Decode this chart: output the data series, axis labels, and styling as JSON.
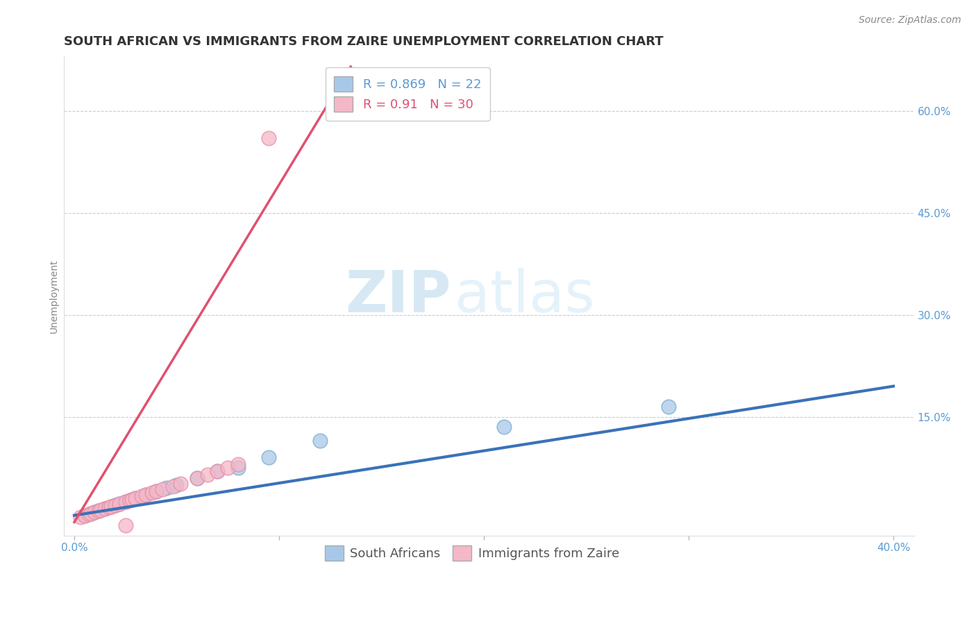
{
  "title": "SOUTH AFRICAN VS IMMIGRANTS FROM ZAIRE UNEMPLOYMENT CORRELATION CHART",
  "source_text": "Source: ZipAtlas.com",
  "ylabel": "Unemployment",
  "xlim": [
    -0.005,
    0.41
  ],
  "ylim": [
    -0.025,
    0.68
  ],
  "xtick_labels": [
    "0.0%",
    "",
    "",
    "",
    "40.0%"
  ],
  "xtick_values": [
    0.0,
    0.1,
    0.2,
    0.3,
    0.4
  ],
  "ytick_labels": [
    "15.0%",
    "30.0%",
    "45.0%",
    "60.0%"
  ],
  "ytick_values": [
    0.15,
    0.3,
    0.45,
    0.6
  ],
  "blue_color": "#a8c8e8",
  "pink_color": "#f4b8c8",
  "blue_edge_color": "#7aafd0",
  "pink_edge_color": "#e890a8",
  "blue_line_color": "#3a72b8",
  "pink_line_color": "#e05070",
  "R_blue": 0.869,
  "N_blue": 22,
  "R_pink": 0.91,
  "N_pink": 30,
  "legend_label_blue": "South Africans",
  "legend_label_pink": "Immigrants from Zaire",
  "watermark_zip": "ZIP",
  "watermark_atlas": "atlas",
  "blue_scatter_x": [
    0.005,
    0.008,
    0.01,
    0.012,
    0.015,
    0.018,
    0.02,
    0.022,
    0.025,
    0.028,
    0.03,
    0.035,
    0.04,
    0.045,
    0.05,
    0.06,
    0.07,
    0.08,
    0.095,
    0.12,
    0.21,
    0.29
  ],
  "blue_scatter_y": [
    0.005,
    0.008,
    0.01,
    0.012,
    0.015,
    0.018,
    0.02,
    0.022,
    0.025,
    0.028,
    0.03,
    0.035,
    0.04,
    0.045,
    0.05,
    0.06,
    0.07,
    0.075,
    0.09,
    0.115,
    0.135,
    0.165
  ],
  "pink_scatter_x": [
    0.003,
    0.005,
    0.007,
    0.008,
    0.01,
    0.012,
    0.013,
    0.015,
    0.017,
    0.018,
    0.02,
    0.022,
    0.025,
    0.027,
    0.028,
    0.03,
    0.033,
    0.035,
    0.038,
    0.04,
    0.043,
    0.048,
    0.052,
    0.06,
    0.065,
    0.07,
    0.075,
    0.08,
    0.095,
    0.025
  ],
  "pink_scatter_y": [
    0.003,
    0.005,
    0.007,
    0.008,
    0.01,
    0.012,
    0.013,
    0.015,
    0.017,
    0.018,
    0.02,
    0.022,
    0.025,
    0.027,
    0.028,
    0.03,
    0.033,
    0.035,
    0.038,
    0.04,
    0.043,
    0.048,
    0.052,
    0.06,
    0.065,
    0.07,
    0.075,
    0.08,
    0.56,
    -0.01
  ],
  "blue_trend_x": [
    0.0,
    0.4
  ],
  "blue_trend_y": [
    0.005,
    0.195
  ],
  "pink_trend_x": [
    0.0,
    0.135
  ],
  "pink_trend_y": [
    -0.005,
    0.665
  ],
  "title_fontsize": 13,
  "axis_label_fontsize": 10,
  "tick_fontsize": 11,
  "legend_fontsize": 13,
  "scatter_size": 220,
  "background_color": "#ffffff",
  "grid_color": "#cccccc"
}
